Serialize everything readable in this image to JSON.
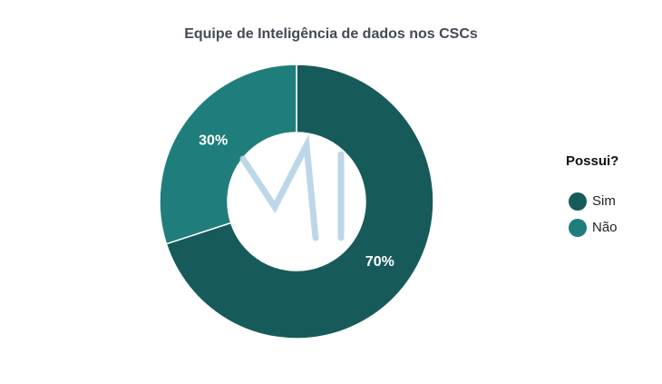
{
  "chart_data": {
    "type": "donut",
    "title": "Equipe de Inteligência de dados nos CSCs",
    "categories": [
      "Sim",
      "Não"
    ],
    "values": [
      70,
      30
    ],
    "value_labels": [
      "70%",
      "30%"
    ],
    "colors": [
      "#165b59",
      "#1f7e7b"
    ],
    "legend_title": "Possui?",
    "legend_position": "right"
  }
}
